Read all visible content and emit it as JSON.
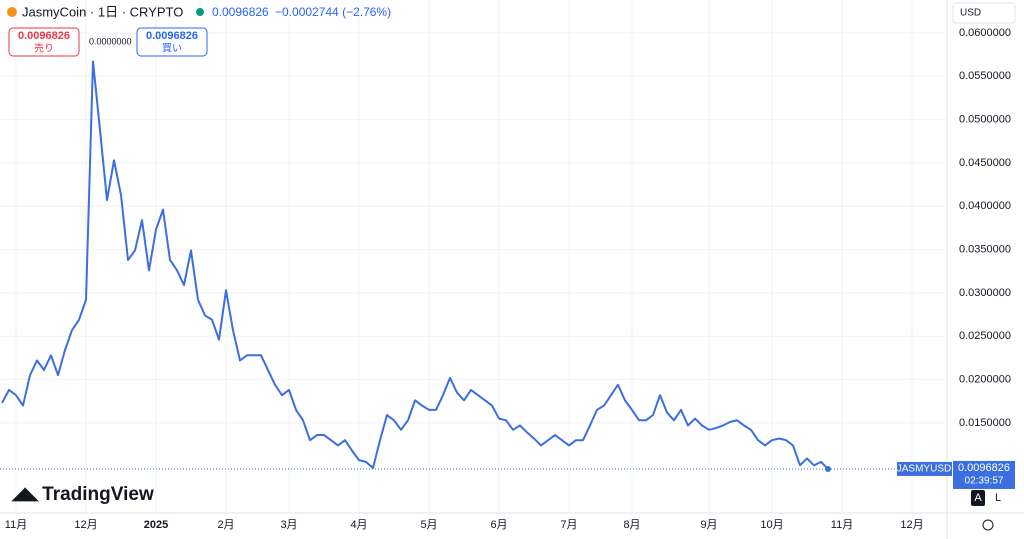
{
  "chart_data": {
    "type": "line",
    "title": "JasmyCoin · 1日 · CRYPTO",
    "categories": [
      null,
      null,
      "11月",
      null,
      null,
      null,
      null,
      null,
      null,
      null,
      null,
      null,
      "12月",
      null,
      null,
      null,
      null,
      null,
      null,
      null,
      null,
      null,
      "2025",
      null,
      null,
      null,
      null,
      null,
      null,
      null,
      null,
      null,
      "2月",
      null,
      null,
      null,
      null,
      null,
      null,
      null,
      null,
      "3月",
      null,
      null,
      null,
      null,
      null,
      null,
      null,
      null,
      null,
      "4月",
      null,
      null,
      null,
      null,
      null,
      null,
      null,
      null,
      null,
      "5月",
      null,
      null,
      null,
      null,
      null,
      null,
      null,
      null,
      null,
      "6月",
      null,
      null,
      null,
      null,
      null,
      null,
      null,
      null,
      null,
      "7月",
      null,
      null,
      null,
      null,
      null,
      null,
      null,
      null,
      "8月",
      null,
      null,
      null,
      null,
      null,
      null,
      null,
      null,
      null,
      null,
      "9月",
      null,
      null,
      null,
      null,
      null,
      null,
      null,
      null,
      "10月",
      null,
      null,
      null,
      null,
      null,
      null,
      null,
      null,
      null,
      "11月",
      null,
      null,
      null,
      null,
      null,
      null,
      null,
      null,
      null,
      "12月",
      null,
      null,
      null
    ],
    "series": [
      {
        "name": "JASMYUSD",
        "color": "#3b6fe0",
        "values": [
          0.0173,
          0.0188,
          0.0182,
          0.017,
          0.0205,
          0.0222,
          0.0211,
          0.0228,
          0.0205,
          0.0234,
          0.0257,
          0.0269,
          0.0292,
          0.0567,
          0.0488,
          0.0407,
          0.0453,
          0.0413,
          0.0338,
          0.0349,
          0.0384,
          0.0326,
          0.0373,
          0.0396,
          0.0338,
          0.0326,
          0.0309,
          0.0349,
          0.0292,
          0.0274,
          0.0269,
          0.0246,
          0.0303,
          0.0257,
          0.0222,
          0.0228,
          0.0228,
          0.0228,
          0.0211,
          0.0194,
          0.0182,
          0.0188,
          0.0165,
          0.0153,
          0.013,
          0.0136,
          0.0136,
          0.013,
          0.0124,
          0.013,
          0.0118,
          0.0107,
          0.0105,
          0.0098,
          0.013,
          0.0159,
          0.0153,
          0.0142,
          0.0153,
          0.0176,
          0.017,
          0.0165,
          0.0165,
          0.0182,
          0.0202,
          0.0185,
          0.0176,
          0.0188,
          0.0182,
          0.0176,
          0.017,
          0.0155,
          0.0153,
          0.0142,
          0.0147,
          0.0139,
          0.0132,
          0.0124,
          0.013,
          0.0136,
          0.013,
          0.0124,
          0.013,
          0.013,
          0.0147,
          0.0165,
          0.017,
          0.0182,
          0.0194,
          0.0176,
          0.0165,
          0.0153,
          0.0153,
          0.0159,
          0.0182,
          0.0162,
          0.0153,
          0.0165,
          0.0147,
          0.0155,
          0.0147,
          0.0142,
          0.0144,
          0.0147,
          0.0151,
          0.0153,
          0.0147,
          0.0142,
          0.013,
          0.0124,
          0.013,
          0.0132,
          0.013,
          0.0124,
          0.0101,
          0.0109,
          0.0101,
          0.0105,
          0.0096826,
          null,
          null,
          null,
          null,
          null,
          null,
          null,
          null,
          null,
          null,
          null,
          null,
          null,
          null,
          null
        ]
      }
    ],
    "ylim": [
      0.0046,
      0.0638
    ],
    "yticks": [
      {
        "value": 0.015,
        "label": "0.0150000"
      },
      {
        "value": 0.02,
        "label": "0.0200000"
      },
      {
        "value": 0.025,
        "label": "0.0250000"
      },
      {
        "value": 0.03,
        "label": "0.0300000"
      },
      {
        "value": 0.035,
        "label": "0.0350000"
      },
      {
        "value": 0.04,
        "label": "0.0400000"
      },
      {
        "value": 0.045,
        "label": "0.0450000"
      },
      {
        "value": 0.05,
        "label": "0.0500000"
      },
      {
        "value": 0.055,
        "label": "0.0550000"
      },
      {
        "value": 0.06,
        "label": "0.0600000"
      }
    ],
    "grid": true
  },
  "ui": {
    "price": "0.0096826",
    "change": "−0.0002744 (−2.76%)",
    "sell_price": "0.0096826",
    "sell": "売り",
    "buy_price": "0.0096826",
    "buy": "買い",
    "high_label": "0.0000000",
    "currency": "USD",
    "symbol_tag": "JASMYUSD",
    "price_tag": "0.0096826",
    "countdown": "02:39:57",
    "logo": "TradingView",
    "btn_a": "A",
    "btn_l": "L"
  }
}
